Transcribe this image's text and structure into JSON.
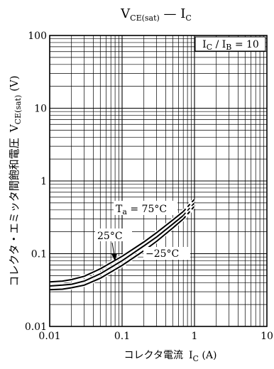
{
  "chart_data": {
    "type": "line",
    "title": {
      "main": "V",
      "sub1": "CE(sat)",
      "dash": " — ",
      "main2": "I",
      "sub2": "C"
    },
    "xlabel": {
      "text": "コレクタ電流",
      "sym": "I",
      "sub": "C",
      "unit": " (A)"
    },
    "ylabel": {
      "text": "コレクタ・エミッタ間飽和電圧",
      "sym": "V",
      "sub": "CE(sat)",
      "unit": " (V)"
    },
    "x_scale": "log",
    "y_scale": "log",
    "xlim": [
      0.01,
      10
    ],
    "ylim": [
      0.01,
      100
    ],
    "x_ticks": [
      "0.01",
      "0.1",
      "1",
      "10"
    ],
    "y_ticks": [
      "0.01",
      "0.1",
      "1",
      "10",
      "100"
    ],
    "grid": true,
    "condition_box": {
      "sym1": "I",
      "sub1": "C",
      "sep": " / ",
      "sym2": "I",
      "sub2": "B",
      "rest": " = 10"
    },
    "series": [
      {
        "name": "Ta = 75°C",
        "label": {
          "sym": "T",
          "sub": "a",
          "rest": " = 75°C"
        },
        "x": [
          0.01,
          0.015,
          0.02,
          0.03,
          0.05,
          0.1,
          0.2,
          0.3,
          0.5,
          0.7,
          1.0
        ],
        "y": [
          0.041,
          0.042,
          0.044,
          0.049,
          0.062,
          0.092,
          0.145,
          0.195,
          0.29,
          0.38,
          0.56
        ]
      },
      {
        "name": "25°C",
        "label": {
          "text": "25°C"
        },
        "x": [
          0.01,
          0.015,
          0.02,
          0.03,
          0.05,
          0.1,
          0.2,
          0.3,
          0.5,
          0.7,
          1.0
        ],
        "y": [
          0.036,
          0.037,
          0.038,
          0.042,
          0.053,
          0.08,
          0.128,
          0.17,
          0.255,
          0.335,
          0.5
        ]
      },
      {
        "name": "-25°C",
        "label": {
          "text": "−25°C"
        },
        "x": [
          0.01,
          0.015,
          0.02,
          0.03,
          0.05,
          0.1,
          0.2,
          0.3,
          0.5,
          0.7,
          1.0
        ],
        "y": [
          0.032,
          0.0325,
          0.034,
          0.037,
          0.046,
          0.069,
          0.11,
          0.148,
          0.225,
          0.3,
          0.45
        ]
      }
    ]
  }
}
